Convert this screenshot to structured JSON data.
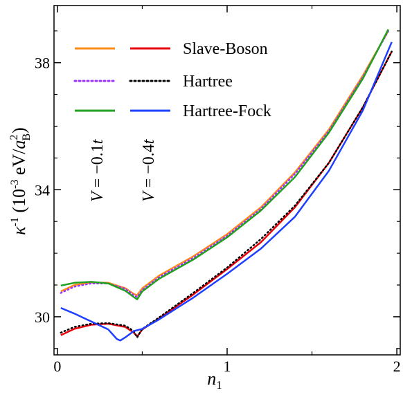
{
  "chart_data": {
    "type": "line",
    "xlabel": "n",
    "xlabel_sub": "1",
    "ylabel": "κ-1 (10-3 eV/aB2)",
    "ylabel_parts": {
      "kappa": "κ",
      "kappa_sup": "-1",
      "open": " (10",
      "ten_sup": "-3",
      "mid": " eV/",
      "a": "a",
      "a_sup": "2",
      "a_sub": "B",
      "close": ")"
    },
    "xlim": [
      -0.02,
      2.02
    ],
    "ylim": [
      28.8,
      39.8
    ],
    "x_ticks": [
      0,
      1,
      2
    ],
    "x_tick_labels": [
      "0",
      "1",
      "2"
    ],
    "y_ticks": [
      30,
      34,
      38
    ],
    "y_tick_labels": [
      "30",
      "34",
      "38"
    ],
    "grid": false,
    "legend_placement": "top-left",
    "legend_labels": [
      "Slave-Boson",
      "Hartree",
      "Hartree-Fock"
    ],
    "group_labels": [
      "V = −0.1t",
      "V = −0.4t"
    ],
    "group_label_parts": [
      {
        "v": "V",
        "eq": " = −0.1",
        "t": "t"
      },
      {
        "v": "V",
        "eq": " = −0.4",
        "t": "t"
      }
    ],
    "series": [
      {
        "method": "Slave-Boson",
        "group": "V=-0.1t",
        "color": "#ff8c1a",
        "dash": "solid",
        "x": [
          0.02,
          0.1,
          0.2,
          0.3,
          0.4,
          0.45,
          0.47,
          0.5,
          0.6,
          0.8,
          1.0,
          1.2,
          1.4,
          1.6,
          1.8,
          1.95
        ],
        "y": [
          30.8,
          31.0,
          31.08,
          31.07,
          30.9,
          30.72,
          30.68,
          30.9,
          31.3,
          31.9,
          32.6,
          33.45,
          34.55,
          35.9,
          37.6,
          39.0
        ]
      },
      {
        "method": "Hartree",
        "group": "V=-0.1t",
        "color": "#9b30ff",
        "dash": "dotted",
        "x": [
          0.02,
          0.1,
          0.2,
          0.3,
          0.4,
          0.45,
          0.47,
          0.5,
          0.6,
          0.8,
          1.0,
          1.2,
          1.4,
          1.6,
          1.8,
          1.95
        ],
        "y": [
          30.75,
          30.95,
          31.05,
          31.05,
          30.88,
          30.68,
          30.62,
          30.85,
          31.25,
          31.85,
          32.55,
          33.4,
          34.5,
          35.85,
          37.55,
          39.0
        ]
      },
      {
        "method": "Hartree-Fock",
        "group": "V=-0.1t",
        "color": "#22a022",
        "dash": "solid",
        "x": [
          0.02,
          0.1,
          0.2,
          0.3,
          0.4,
          0.45,
          0.47,
          0.5,
          0.6,
          0.8,
          1.0,
          1.2,
          1.4,
          1.6,
          1.8,
          1.95
        ],
        "y": [
          30.98,
          31.07,
          31.1,
          31.05,
          30.82,
          30.62,
          30.55,
          30.8,
          31.2,
          31.8,
          32.5,
          33.35,
          34.4,
          35.8,
          37.5,
          39.05
        ]
      },
      {
        "method": "Slave-Boson",
        "group": "V=-0.4t",
        "color": "#e8000b",
        "dash": "solid",
        "x": [
          0.02,
          0.1,
          0.2,
          0.3,
          0.4,
          0.45,
          0.47,
          0.5,
          0.6,
          0.8,
          1.0,
          1.2,
          1.4,
          1.6,
          1.8,
          1.97
        ],
        "y": [
          29.42,
          29.62,
          29.75,
          29.78,
          29.68,
          29.5,
          29.38,
          29.6,
          29.95,
          30.7,
          31.5,
          32.35,
          33.45,
          34.85,
          36.6,
          38.35
        ]
      },
      {
        "method": "Hartree",
        "group": "V=-0.4t",
        "color": "#000000",
        "dash": "dotted",
        "x": [
          0.02,
          0.1,
          0.2,
          0.3,
          0.4,
          0.45,
          0.47,
          0.5,
          0.6,
          0.8,
          1.0,
          1.2,
          1.4,
          1.6,
          1.8,
          1.97
        ],
        "y": [
          29.5,
          29.68,
          29.78,
          29.8,
          29.72,
          29.55,
          29.35,
          29.62,
          29.98,
          30.75,
          31.55,
          32.45,
          33.5,
          34.85,
          36.6,
          38.35
        ]
      },
      {
        "method": "Hartree-Fock",
        "group": "V=-0.4t",
        "color": "#1f3fff",
        "dash": "solid",
        "x": [
          0.02,
          0.1,
          0.2,
          0.3,
          0.35,
          0.37,
          0.4,
          0.45,
          0.5,
          0.6,
          0.8,
          1.0,
          1.2,
          1.4,
          1.6,
          1.8,
          1.97
        ],
        "y": [
          30.28,
          30.1,
          29.85,
          29.6,
          29.3,
          29.25,
          29.35,
          29.55,
          29.62,
          29.92,
          30.6,
          31.35,
          32.15,
          33.15,
          34.6,
          36.5,
          38.65
        ]
      }
    ]
  }
}
